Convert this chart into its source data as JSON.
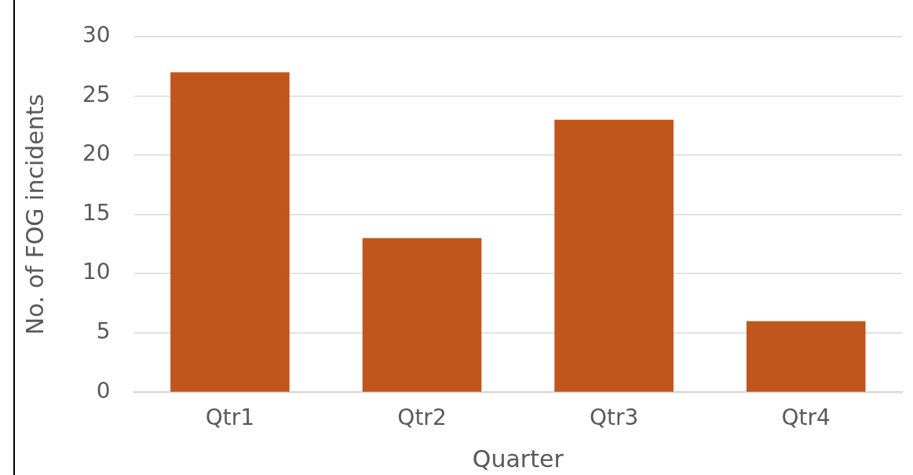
{
  "chart_data": {
    "type": "bar",
    "xlabel": "Quarter",
    "ylabel": "No. of FOG incidents",
    "categories": [
      "Qtr1",
      "Qtr2",
      "Qtr3",
      "Qtr4"
    ],
    "values": [
      27,
      13,
      23,
      6
    ],
    "color": "#c0561b",
    "ylim": [
      0,
      30
    ],
    "yticks": [
      0,
      5,
      10,
      15,
      20,
      25,
      30
    ],
    "grid": "y",
    "legend": false
  }
}
